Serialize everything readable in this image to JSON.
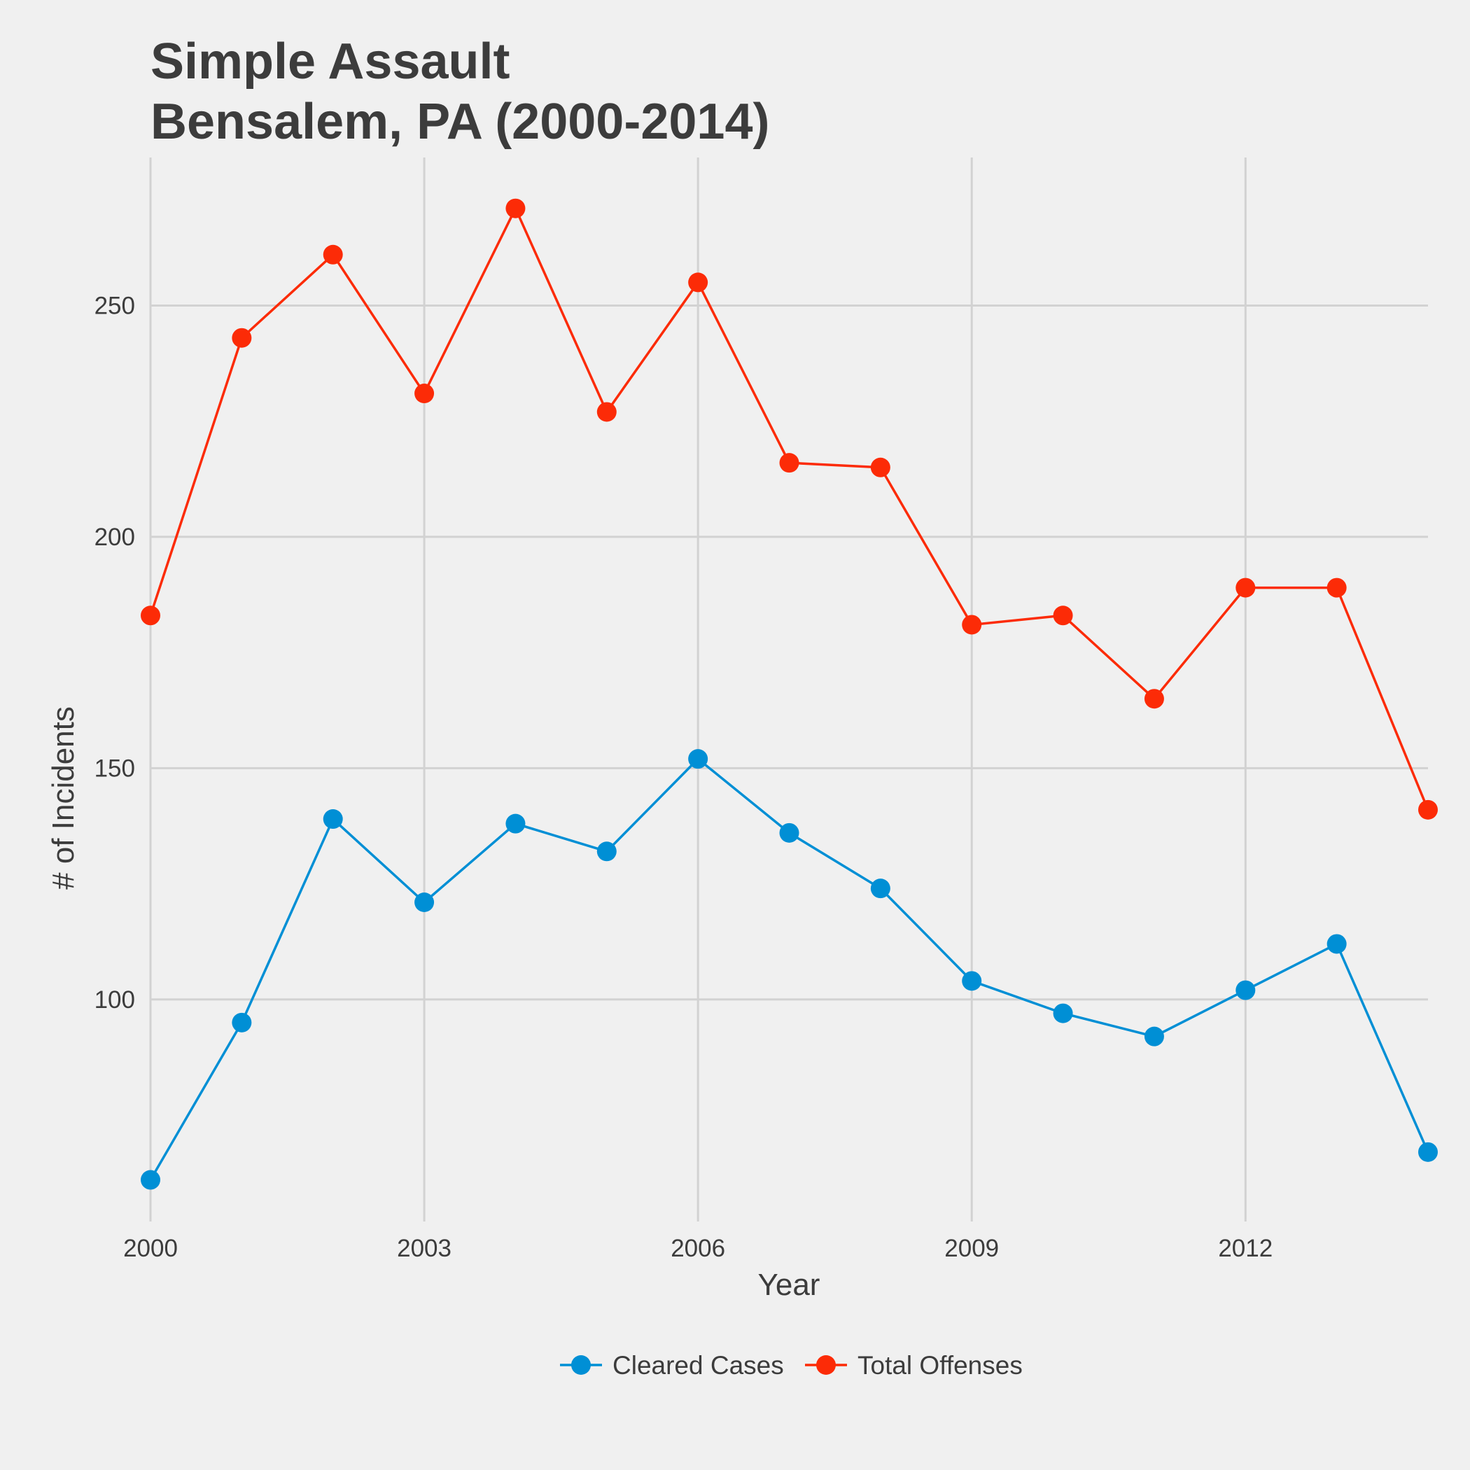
{
  "chart_data": {
    "type": "line",
    "title_lines": [
      "Simple Assault",
      "Bensalem, PA (2000-2014)"
    ],
    "xlabel": "Year",
    "ylabel": "# of Incidents",
    "x": [
      2000,
      2001,
      2002,
      2003,
      2004,
      2005,
      2006,
      2007,
      2008,
      2009,
      2010,
      2011,
      2012,
      2013,
      2014
    ],
    "xlim": [
      2000,
      2014
    ],
    "ylim": [
      52,
      282
    ],
    "x_ticks": [
      2000,
      2003,
      2006,
      2009,
      2012
    ],
    "y_ticks": [
      100,
      150,
      200,
      250
    ],
    "grid": true,
    "legend_position": "bottom",
    "series": [
      {
        "name": "Cleared Cases",
        "color": "#008fd5",
        "values": [
          61,
          95,
          139,
          121,
          138,
          132,
          152,
          136,
          124,
          104,
          97,
          92,
          102,
          112,
          67
        ]
      },
      {
        "name": "Total Offenses",
        "color": "#fc2b07",
        "values": [
          183,
          243,
          261,
          231,
          271,
          227,
          255,
          216,
          215,
          181,
          183,
          165,
          189,
          189,
          141
        ]
      }
    ]
  }
}
